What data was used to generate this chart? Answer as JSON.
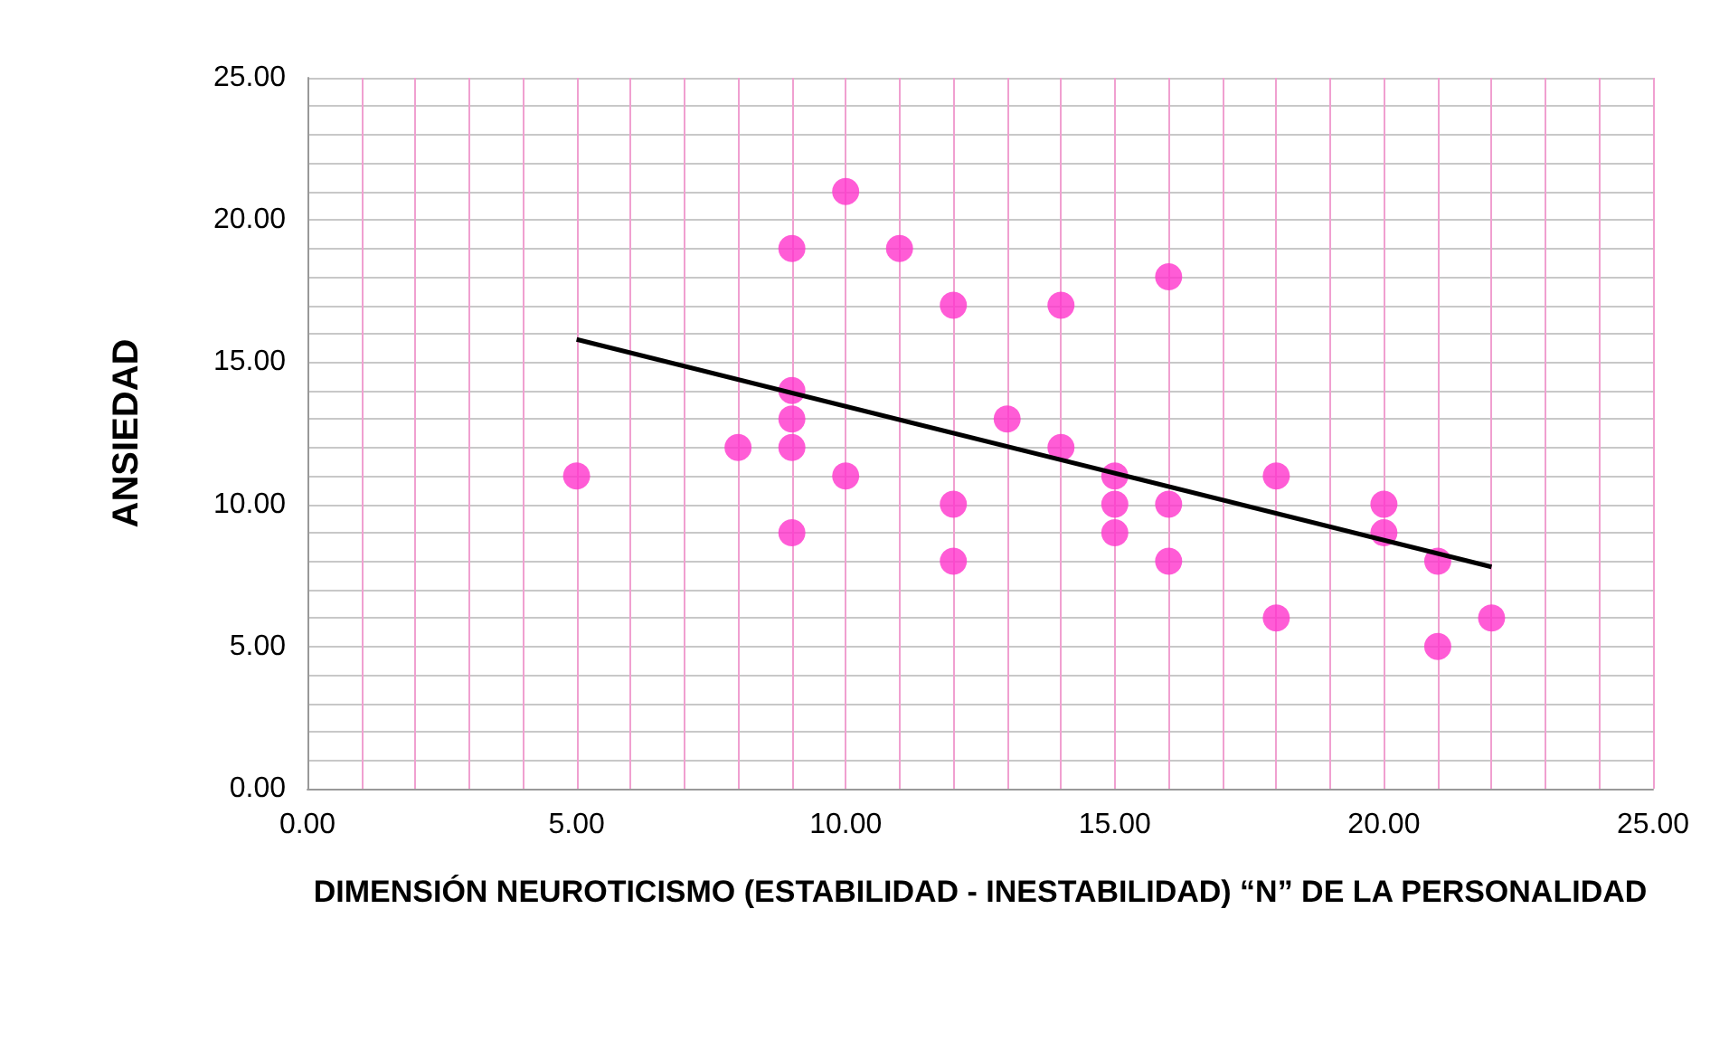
{
  "chart_data": {
    "type": "scatter",
    "xlabel": "DIMENSIÓN NEUROTICISMO (ESTABILIDAD - INESTABILIDAD) “N” DE LA PERSONALIDAD",
    "ylabel": "ANSIEDAD",
    "xlim": [
      0,
      25
    ],
    "ylim": [
      0,
      25
    ],
    "xticks": [
      {
        "value": 0,
        "label": "0.00"
      },
      {
        "value": 1,
        "label": null
      },
      {
        "value": 2,
        "label": null
      },
      {
        "value": 3,
        "label": null
      },
      {
        "value": 4,
        "label": null
      },
      {
        "value": 5,
        "label": "5.00"
      },
      {
        "value": 6,
        "label": null
      },
      {
        "value": 7,
        "label": null
      },
      {
        "value": 8,
        "label": null
      },
      {
        "value": 9,
        "label": null
      },
      {
        "value": 10,
        "label": "10.00"
      },
      {
        "value": 11,
        "label": null
      },
      {
        "value": 12,
        "label": null
      },
      {
        "value": 13,
        "label": null
      },
      {
        "value": 14,
        "label": null
      },
      {
        "value": 15,
        "label": "15.00"
      },
      {
        "value": 16,
        "label": null
      },
      {
        "value": 17,
        "label": null
      },
      {
        "value": 18,
        "label": null
      },
      {
        "value": 19,
        "label": null
      },
      {
        "value": 20,
        "label": "20.00"
      },
      {
        "value": 21,
        "label": null
      },
      {
        "value": 22,
        "label": null
      },
      {
        "value": 23,
        "label": null
      },
      {
        "value": 24,
        "label": null
      },
      {
        "value": 25,
        "label": "25.00"
      }
    ],
    "yticks": [
      {
        "value": 0,
        "label": "0.00"
      },
      {
        "value": 1,
        "label": null
      },
      {
        "value": 2,
        "label": null
      },
      {
        "value": 3,
        "label": null
      },
      {
        "value": 4,
        "label": null
      },
      {
        "value": 5,
        "label": "5.00"
      },
      {
        "value": 6,
        "label": null
      },
      {
        "value": 7,
        "label": null
      },
      {
        "value": 8,
        "label": null
      },
      {
        "value": 9,
        "label": null
      },
      {
        "value": 10,
        "label": "10.00"
      },
      {
        "value": 11,
        "label": null
      },
      {
        "value": 12,
        "label": null
      },
      {
        "value": 13,
        "label": null
      },
      {
        "value": 14,
        "label": null
      },
      {
        "value": 15,
        "label": "15.00"
      },
      {
        "value": 16,
        "label": null
      },
      {
        "value": 17,
        "label": null
      },
      {
        "value": 18,
        "label": null
      },
      {
        "value": 19,
        "label": null
      },
      {
        "value": 20,
        "label": "20.00"
      },
      {
        "value": 21,
        "label": null
      },
      {
        "value": 22,
        "label": null
      },
      {
        "value": 23,
        "label": null
      },
      {
        "value": 24,
        "label": null
      },
      {
        "value": 25,
        "label": "25.00"
      }
    ],
    "grid": true,
    "series": [
      {
        "marker": "circle",
        "color": "#ff33cc",
        "x": [
          5,
          8,
          9,
          9,
          9,
          9,
          9,
          10,
          10,
          11,
          12,
          12,
          12,
          13,
          14,
          14,
          15,
          15,
          15,
          16,
          16,
          16,
          18,
          18,
          20,
          20,
          21,
          21,
          22
        ],
        "values": [
          11,
          12,
          19,
          14,
          13,
          12,
          9,
          21,
          11,
          19,
          17,
          10,
          8,
          13,
          17,
          12,
          11,
          10,
          9,
          18,
          10,
          8,
          11,
          6,
          10,
          9,
          8,
          5,
          6
        ]
      },
      {
        "type": "line",
        "color": "#000000",
        "x": [
          5,
          22
        ],
        "values": [
          15.8,
          7.8
        ]
      }
    ]
  }
}
